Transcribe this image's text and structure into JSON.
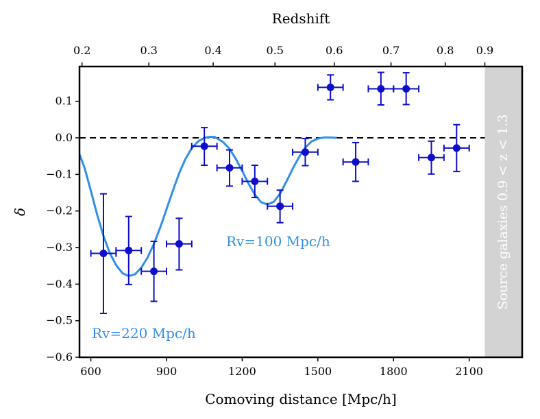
{
  "chart_data": {
    "type": "scatter",
    "title": "",
    "xlabel": "Comoving distance [Mpc/h]",
    "ylabel": "δ",
    "top_axis_label": "Redshift",
    "xlim": [
      555,
      2310
    ],
    "ylim": [
      -0.6,
      0.195
    ],
    "x_ticks": [
      600,
      900,
      1200,
      1500,
      1800,
      2100
    ],
    "x_tick_labels": [
      "600",
      "900",
      "1200",
      "1500",
      "1800",
      "2100"
    ],
    "y_ticks": [
      0.1,
      0.0,
      -0.1,
      -0.2,
      -0.3,
      -0.4,
      -0.5,
      -0.6
    ],
    "y_tick_labels": [
      "0.1",
      "0.0",
      "−0.1",
      "−0.2",
      "−0.3",
      "−0.4",
      "−0.5",
      "−0.6"
    ],
    "top_ticks": [
      {
        "x": 565,
        "label": "0.2"
      },
      {
        "x": 830,
        "label": "0.3"
      },
      {
        "x": 1085,
        "label": "0.4"
      },
      {
        "x": 1330,
        "label": "0.5"
      },
      {
        "x": 1565,
        "label": "0.6"
      },
      {
        "x": 1790,
        "label": "0.7"
      },
      {
        "x": 2005,
        "label": "0.8"
      },
      {
        "x": 2162,
        "label": "0.9"
      }
    ],
    "reference_line": {
      "y": 0.0,
      "style": "dashed",
      "color": "#000000"
    },
    "data_series": {
      "color": "#0d0dcc",
      "points": [
        {
          "x": 650,
          "y": -0.316,
          "xerr": 50,
          "yerr_low": 0.164,
          "yerr_high": 0.163
        },
        {
          "x": 750,
          "y": -0.308,
          "xerr": 50,
          "yerr_low": 0.093,
          "yerr_high": 0.093
        },
        {
          "x": 850,
          "y": -0.365,
          "xerr": 50,
          "yerr_low": 0.082,
          "yerr_high": 0.082
        },
        {
          "x": 950,
          "y": -0.29,
          "xerr": 50,
          "yerr_low": 0.071,
          "yerr_high": 0.07
        },
        {
          "x": 1050,
          "y": -0.023,
          "xerr": 50,
          "yerr_low": 0.052,
          "yerr_high": 0.051
        },
        {
          "x": 1150,
          "y": -0.082,
          "xerr": 50,
          "yerr_low": 0.05,
          "yerr_high": 0.049
        },
        {
          "x": 1250,
          "y": -0.119,
          "xerr": 50,
          "yerr_low": 0.044,
          "yerr_high": 0.044
        },
        {
          "x": 1350,
          "y": -0.187,
          "xerr": 50,
          "yerr_low": 0.045,
          "yerr_high": 0.044
        },
        {
          "x": 1450,
          "y": -0.039,
          "xerr": 50,
          "yerr_low": 0.037,
          "yerr_high": 0.037
        },
        {
          "x": 1550,
          "y": 0.138,
          "xerr": 50,
          "yerr_low": 0.034,
          "yerr_high": 0.034
        },
        {
          "x": 1650,
          "y": -0.066,
          "xerr": 50,
          "yerr_low": 0.053,
          "yerr_high": 0.053
        },
        {
          "x": 1750,
          "y": 0.134,
          "xerr": 50,
          "yerr_low": 0.044,
          "yerr_high": 0.045
        },
        {
          "x": 1850,
          "y": 0.134,
          "xerr": 50,
          "yerr_low": 0.043,
          "yerr_high": 0.044
        },
        {
          "x": 1950,
          "y": -0.054,
          "xerr": 50,
          "yerr_low": 0.045,
          "yerr_high": 0.045
        },
        {
          "x": 2050,
          "y": -0.028,
          "xerr": 50,
          "yerr_low": 0.064,
          "yerr_high": 0.064
        }
      ]
    },
    "model_curves": [
      {
        "label": "Rv=220 Mpc/h",
        "color": "#2f8fe8",
        "x": [
          555,
          575,
          600,
          625,
          650,
          675,
          700,
          725,
          750,
          775,
          800,
          825,
          850,
          875,
          900,
          925,
          950,
          975,
          1000,
          1025,
          1050,
          1075,
          1095
        ],
        "y": [
          -0.045,
          -0.082,
          -0.145,
          -0.21,
          -0.268,
          -0.315,
          -0.348,
          -0.37,
          -0.378,
          -0.373,
          -0.355,
          -0.327,
          -0.29,
          -0.245,
          -0.195,
          -0.145,
          -0.097,
          -0.058,
          -0.028,
          -0.01,
          0.0,
          0.003,
          0.002
        ]
      },
      {
        "label": "Rv=100 Mpc/h",
        "color": "#2f8fe8",
        "x": [
          1095,
          1125,
          1150,
          1175,
          1200,
          1225,
          1250,
          1275,
          1300,
          1325,
          1350,
          1375,
          1400,
          1425,
          1450,
          1475,
          1500,
          1525,
          1550,
          1575
        ],
        "y": [
          0.001,
          -0.012,
          -0.03,
          -0.058,
          -0.09,
          -0.125,
          -0.155,
          -0.176,
          -0.182,
          -0.175,
          -0.153,
          -0.12,
          -0.085,
          -0.053,
          -0.027,
          -0.01,
          -0.002,
          0.001,
          0.001,
          0.0
        ]
      }
    ],
    "shaded_region": {
      "x_start": 2162,
      "x_end": 2310,
      "color": "#d3d3d3",
      "label": "Source galaxies 0.9 < z < 1.3"
    },
    "annotations": [
      {
        "text": "Rv=220 Mpc/h",
        "color": "#2f8fe8"
      },
      {
        "text": "Rv=100 Mpc/h",
        "color": "#2f8fe8"
      }
    ]
  }
}
